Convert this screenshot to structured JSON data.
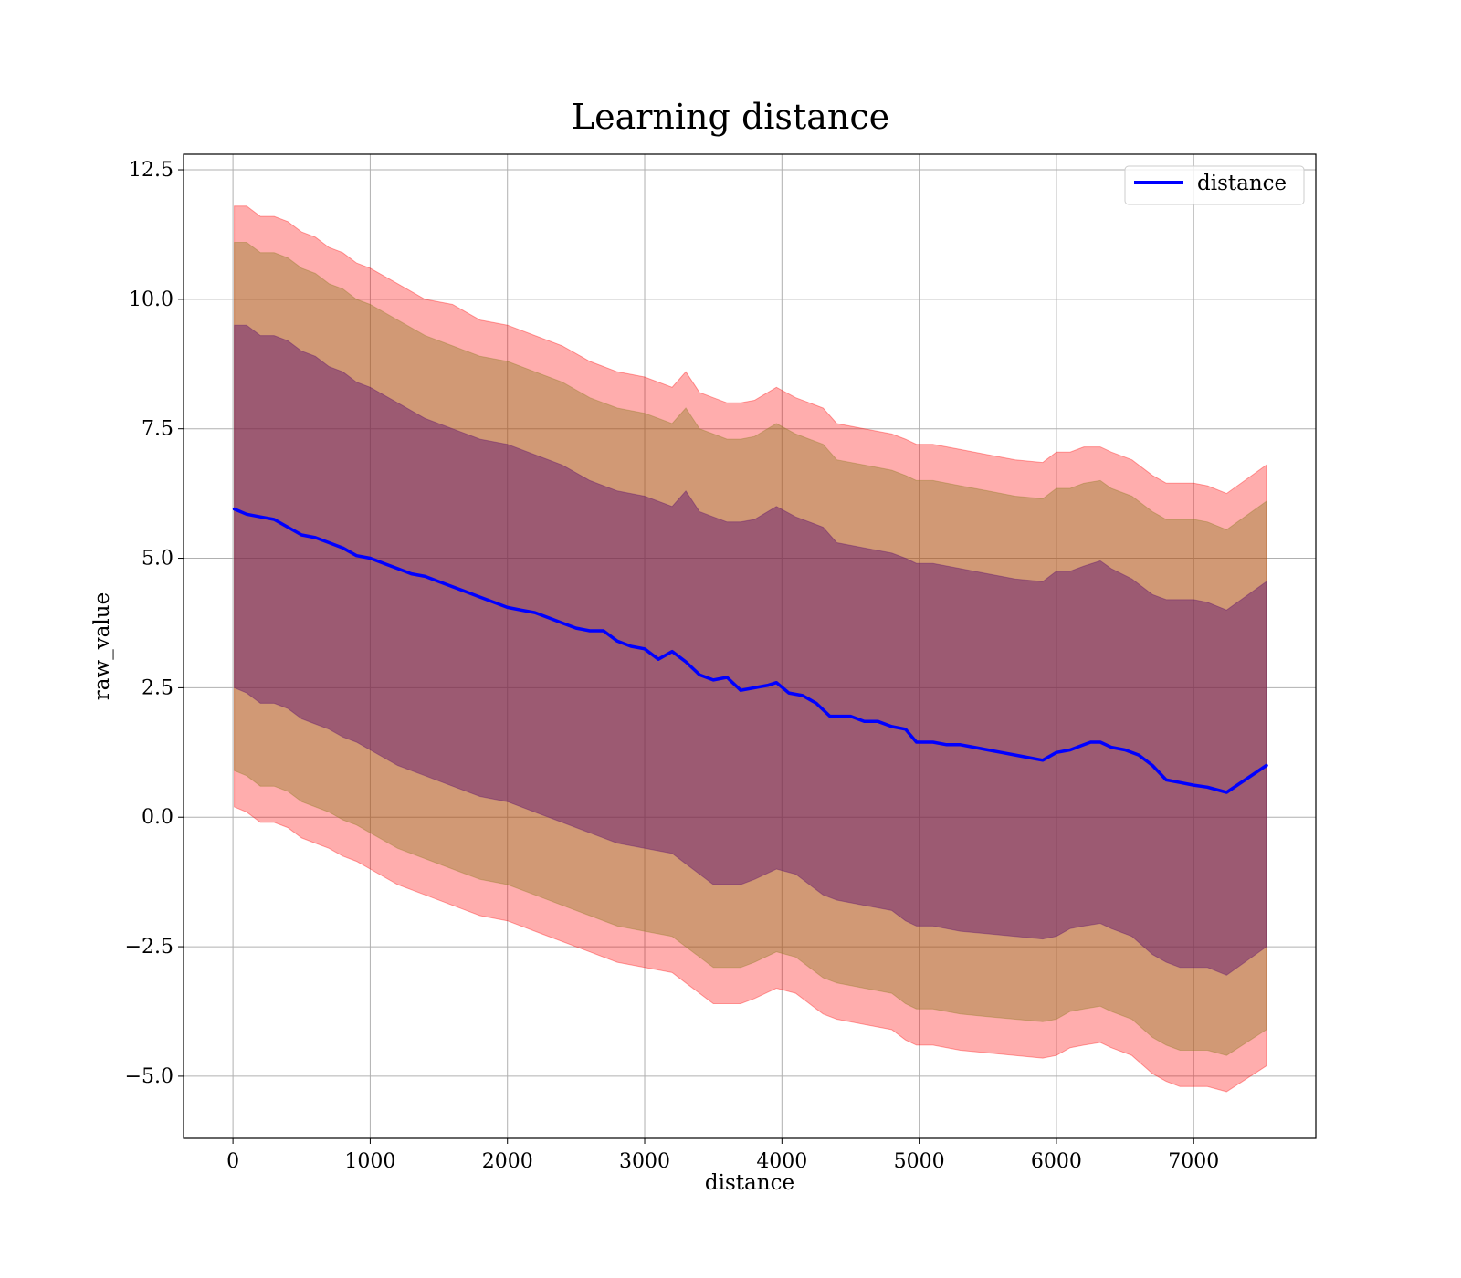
{
  "chart_data": {
    "type": "line",
    "title": "Learning distance",
    "xlabel": "distance",
    "ylabel": "raw_value",
    "xlim": [
      -360,
      7890
    ],
    "ylim": [
      -6.2,
      12.8
    ],
    "x_ticks": [
      0,
      1000,
      2000,
      3000,
      4000,
      5000,
      6000,
      7000
    ],
    "x_tick_labels": [
      "0",
      "1000",
      "2000",
      "3000",
      "4000",
      "5000",
      "6000",
      "7000"
    ],
    "y_ticks": [
      -5.0,
      -2.5,
      0.0,
      2.5,
      5.0,
      7.5,
      10.0,
      12.5
    ],
    "y_tick_labels": [
      "−5.0",
      "−2.5",
      "0.0",
      "2.5",
      "5.0",
      "7.5",
      "10.0",
      "12.5"
    ],
    "grid": true,
    "legend": {
      "position": "top-right",
      "entries": [
        "distance"
      ]
    },
    "series": [
      {
        "name": "distance",
        "color": "#0000ff",
        "x": [
          10,
          100,
          200,
          300,
          400,
          500,
          600,
          700,
          800,
          900,
          1000,
          1100,
          1200,
          1300,
          1400,
          1500,
          1600,
          1700,
          1800,
          1900,
          2000,
          2100,
          2200,
          2300,
          2400,
          2500,
          2600,
          2700,
          2800,
          2900,
          3000,
          3100,
          3200,
          3300,
          3400,
          3500,
          3600,
          3700,
          3800,
          3900,
          3960,
          4050,
          4150,
          4250,
          4350,
          4500,
          4600,
          4700,
          4800,
          4900,
          4980,
          5100,
          5200,
          5300,
          5400,
          5500,
          5600,
          5700,
          5800,
          5900,
          6000,
          6100,
          6200,
          6250,
          6320,
          6400,
          6500,
          6600,
          6700,
          6800,
          6900,
          7000,
          7100,
          7240,
          7530
        ],
        "y": [
          5.95,
          5.85,
          5.8,
          5.75,
          5.6,
          5.45,
          5.4,
          5.3,
          5.2,
          5.05,
          5.0,
          4.9,
          4.8,
          4.7,
          4.65,
          4.55,
          4.45,
          4.35,
          4.25,
          4.15,
          4.05,
          4.0,
          3.95,
          3.85,
          3.75,
          3.65,
          3.6,
          3.6,
          3.4,
          3.3,
          3.25,
          3.05,
          3.2,
          3.0,
          2.75,
          2.65,
          2.7,
          2.45,
          2.5,
          2.55,
          2.6,
          2.4,
          2.35,
          2.2,
          1.95,
          1.95,
          1.85,
          1.85,
          1.75,
          1.7,
          1.45,
          1.45,
          1.4,
          1.4,
          1.35,
          1.3,
          1.25,
          1.2,
          1.15,
          1.1,
          1.25,
          1.3,
          1.4,
          1.45,
          1.45,
          1.35,
          1.3,
          1.2,
          1.0,
          0.72,
          0.67,
          0.62,
          0.58,
          0.48,
          1.0
        ]
      }
    ],
    "bands": [
      {
        "description": "outer band",
        "fill": "#ff0000",
        "opacity": 0.32,
        "x": [
          10,
          100,
          200,
          300,
          400,
          500,
          600,
          700,
          800,
          900,
          1000,
          1200,
          1400,
          1600,
          1800,
          2000,
          2200,
          2400,
          2600,
          2800,
          3000,
          3200,
          3300,
          3400,
          3500,
          3600,
          3700,
          3800,
          3960,
          4100,
          4200,
          4300,
          4400,
          4600,
          4800,
          4900,
          4980,
          5100,
          5300,
          5500,
          5700,
          5900,
          6000,
          6100,
          6200,
          6320,
          6400,
          6550,
          6700,
          6800,
          6900,
          7000,
          7100,
          7240,
          7530
        ],
        "upper": [
          11.8,
          11.8,
          11.6,
          11.6,
          11.5,
          11.3,
          11.2,
          11.0,
          10.9,
          10.7,
          10.6,
          10.3,
          10.0,
          9.9,
          9.6,
          9.5,
          9.3,
          9.1,
          8.8,
          8.6,
          8.5,
          8.3,
          8.6,
          8.2,
          8.1,
          8.0,
          8.0,
          8.05,
          8.3,
          8.1,
          8.0,
          7.9,
          7.6,
          7.5,
          7.4,
          7.3,
          7.2,
          7.2,
          7.1,
          7.0,
          6.9,
          6.85,
          7.05,
          7.05,
          7.15,
          7.15,
          7.05,
          6.9,
          6.6,
          6.45,
          6.45,
          6.45,
          6.4,
          6.25,
          6.8
        ],
        "lower": [
          0.2,
          0.1,
          -0.1,
          -0.1,
          -0.2,
          -0.4,
          -0.5,
          -0.6,
          -0.75,
          -0.85,
          -1.0,
          -1.3,
          -1.5,
          -1.7,
          -1.9,
          -2.0,
          -2.2,
          -2.4,
          -2.6,
          -2.8,
          -2.9,
          -3.0,
          -3.2,
          -3.4,
          -3.6,
          -3.6,
          -3.6,
          -3.5,
          -3.3,
          -3.4,
          -3.6,
          -3.8,
          -3.9,
          -4.0,
          -4.1,
          -4.3,
          -4.4,
          -4.4,
          -4.5,
          -4.55,
          -4.6,
          -4.65,
          -4.6,
          -4.45,
          -4.4,
          -4.35,
          -4.45,
          -4.6,
          -4.95,
          -5.1,
          -5.2,
          -5.2,
          -5.2,
          -5.3,
          -4.8
        ]
      },
      {
        "description": "middle band",
        "fill": "#8b7a20",
        "opacity": 0.4,
        "x": [
          10,
          100,
          200,
          300,
          400,
          500,
          600,
          700,
          800,
          900,
          1000,
          1200,
          1400,
          1600,
          1800,
          2000,
          2200,
          2400,
          2600,
          2800,
          3000,
          3200,
          3300,
          3400,
          3500,
          3600,
          3700,
          3800,
          3960,
          4100,
          4200,
          4300,
          4400,
          4600,
          4800,
          4900,
          4980,
          5100,
          5300,
          5500,
          5700,
          5900,
          6000,
          6100,
          6200,
          6320,
          6400,
          6550,
          6700,
          6800,
          6900,
          7000,
          7100,
          7240,
          7530
        ],
        "upper": [
          11.1,
          11.1,
          10.9,
          10.9,
          10.8,
          10.6,
          10.5,
          10.3,
          10.2,
          10.0,
          9.9,
          9.6,
          9.3,
          9.1,
          8.9,
          8.8,
          8.6,
          8.4,
          8.1,
          7.9,
          7.8,
          7.6,
          7.9,
          7.5,
          7.4,
          7.3,
          7.3,
          7.35,
          7.6,
          7.4,
          7.3,
          7.2,
          6.9,
          6.8,
          6.7,
          6.6,
          6.5,
          6.5,
          6.4,
          6.3,
          6.2,
          6.15,
          6.35,
          6.35,
          6.45,
          6.5,
          6.35,
          6.2,
          5.9,
          5.75,
          5.75,
          5.75,
          5.7,
          5.55,
          6.1
        ],
        "lower": [
          0.9,
          0.8,
          0.6,
          0.6,
          0.5,
          0.3,
          0.2,
          0.1,
          -0.05,
          -0.15,
          -0.3,
          -0.6,
          -0.8,
          -1.0,
          -1.2,
          -1.3,
          -1.5,
          -1.7,
          -1.9,
          -2.1,
          -2.2,
          -2.3,
          -2.5,
          -2.7,
          -2.9,
          -2.9,
          -2.9,
          -2.8,
          -2.6,
          -2.7,
          -2.9,
          -3.1,
          -3.2,
          -3.3,
          -3.4,
          -3.6,
          -3.7,
          -3.7,
          -3.8,
          -3.85,
          -3.9,
          -3.95,
          -3.9,
          -3.75,
          -3.7,
          -3.65,
          -3.75,
          -3.9,
          -4.25,
          -4.4,
          -4.5,
          -4.5,
          -4.5,
          -4.6,
          -4.1
        ]
      },
      {
        "description": "inner band",
        "fill": "#5a0d6e",
        "opacity": 0.45,
        "x": [
          10,
          100,
          200,
          300,
          400,
          500,
          600,
          700,
          800,
          900,
          1000,
          1200,
          1400,
          1600,
          1800,
          2000,
          2200,
          2400,
          2600,
          2800,
          3000,
          3200,
          3300,
          3400,
          3500,
          3600,
          3700,
          3800,
          3960,
          4100,
          4200,
          4300,
          4400,
          4600,
          4800,
          4900,
          4980,
          5100,
          5300,
          5500,
          5700,
          5900,
          6000,
          6100,
          6200,
          6320,
          6400,
          6550,
          6700,
          6800,
          6900,
          7000,
          7100,
          7240,
          7530
        ],
        "upper": [
          9.5,
          9.5,
          9.3,
          9.3,
          9.2,
          9.0,
          8.9,
          8.7,
          8.6,
          8.4,
          8.3,
          8.0,
          7.7,
          7.5,
          7.3,
          7.2,
          7.0,
          6.8,
          6.5,
          6.3,
          6.2,
          6.0,
          6.3,
          5.9,
          5.8,
          5.7,
          5.7,
          5.75,
          6.0,
          5.8,
          5.7,
          5.6,
          5.3,
          5.2,
          5.1,
          5.0,
          4.9,
          4.9,
          4.8,
          4.7,
          4.6,
          4.55,
          4.75,
          4.75,
          4.85,
          4.95,
          4.8,
          4.6,
          4.3,
          4.2,
          4.2,
          4.2,
          4.15,
          4.0,
          4.55
        ],
        "lower": [
          2.5,
          2.4,
          2.2,
          2.2,
          2.1,
          1.9,
          1.8,
          1.7,
          1.55,
          1.45,
          1.3,
          1.0,
          0.8,
          0.6,
          0.4,
          0.3,
          0.1,
          -0.1,
          -0.3,
          -0.5,
          -0.6,
          -0.7,
          -0.9,
          -1.1,
          -1.3,
          -1.3,
          -1.3,
          -1.2,
          -1.0,
          -1.1,
          -1.3,
          -1.5,
          -1.6,
          -1.7,
          -1.8,
          -2.0,
          -2.1,
          -2.1,
          -2.2,
          -2.25,
          -2.3,
          -2.35,
          -2.3,
          -2.15,
          -2.1,
          -2.05,
          -2.15,
          -2.3,
          -2.65,
          -2.8,
          -2.9,
          -2.9,
          -2.9,
          -3.05,
          -2.5
        ]
      }
    ]
  }
}
